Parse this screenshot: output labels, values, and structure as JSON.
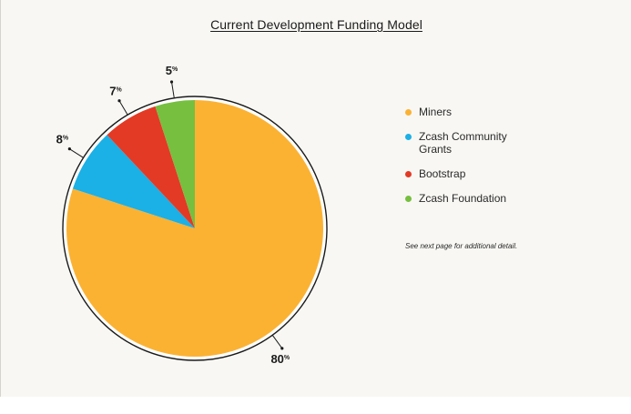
{
  "chart_data": {
    "type": "pie",
    "title": "Current Development Funding Model",
    "categories": [
      "Miners",
      "Zcash Community Grants",
      "Bootstrap",
      "Zcash Foundation"
    ],
    "values": [
      80,
      8,
      7,
      5
    ],
    "value_labels": [
      "80",
      "8",
      "7",
      "5"
    ],
    "unit_sign": "%",
    "colors": [
      "#fbb233",
      "#1bb0e6",
      "#e33a25",
      "#76bf3f"
    ],
    "legend_position": "right"
  },
  "note": "See next page for additional detail."
}
